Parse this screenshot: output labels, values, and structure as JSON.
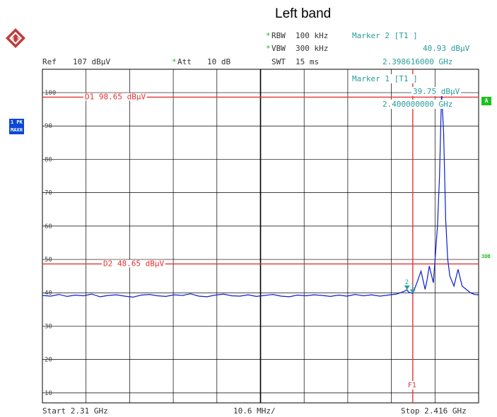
{
  "page_title": "Left band",
  "brand": {
    "logo_letters": "R S",
    "logo_icon": "rohde-schwarz-logo-icon"
  },
  "header": {
    "ref_label": "Ref",
    "ref_value": "107 dBµV",
    "att_label": "Att",
    "att_value": "10 dB",
    "rbw_label": "RBW",
    "rbw_value": "100 kHz",
    "vbw_label": "VBW",
    "vbw_value": "300 kHz",
    "swt_label": "SWT",
    "swt_value": "15 ms",
    "star": "*"
  },
  "markers": [
    {
      "title": "Marker 2 [T1 ]",
      "level": "40.93 dBµV",
      "freq": "2.398616000 GHz"
    },
    {
      "title": "Marker 1 [T1 ]",
      "level": "39.75 dBµV",
      "freq": "2.400000000 GHz"
    }
  ],
  "side_labels": {
    "trace_badge_1": "1 PK",
    "trace_badge_2": "MAXH",
    "annot_a": "A",
    "annot_3db": "3DB"
  },
  "footer": {
    "start": "Start 2.31 GHz",
    "span_div": "10.6 MHz/",
    "stop": "Stop 2.416 GHz"
  },
  "colors": {
    "trace": "#0a1ecc",
    "limit": "#e63333",
    "grid": "#000000",
    "marker_teal": "#2a9c9c"
  },
  "chart_data": {
    "type": "line",
    "title": "Left band",
    "xlabel": "",
    "ylabel": "",
    "xlim": [
      2.31,
      2.416
    ],
    "ylim": [
      7,
      107
    ],
    "yticks": [
      10,
      20,
      30,
      40,
      50,
      60,
      70,
      80,
      90,
      100
    ],
    "ytick_labels": [
      "10",
      "20",
      "30",
      "40",
      "50",
      "60",
      "70",
      "80",
      "90",
      "100"
    ],
    "grid": true,
    "lines": [
      {
        "name": "D1",
        "label": "D1 98.65 dBµV",
        "value": 98.65
      },
      {
        "name": "D2",
        "label": "D2 48.65 dBµV",
        "value": 48.65
      }
    ],
    "vertical_line": {
      "name": "F1",
      "label": "F1",
      "x": 2.4
    },
    "marker_points": [
      {
        "label": "1",
        "x": 2.4,
        "y": 39.75
      },
      {
        "label": "2",
        "x": 2.398616,
        "y": 40.93
      }
    ],
    "series": [
      {
        "x": [
          2.31,
          2.312,
          2.314,
          2.316,
          2.318,
          2.32,
          2.322,
          2.324,
          2.326,
          2.328,
          2.33,
          2.332,
          2.334,
          2.336,
          2.338,
          2.34,
          2.342,
          2.344,
          2.346,
          2.348,
          2.35,
          2.352,
          2.354,
          2.356,
          2.358,
          2.36,
          2.362,
          2.364,
          2.366,
          2.368,
          2.37,
          2.372,
          2.374,
          2.376,
          2.378,
          2.38,
          2.382,
          2.384,
          2.386,
          2.388,
          2.39,
          2.392,
          2.394,
          2.396,
          2.397,
          2.398,
          2.3986,
          2.399,
          2.4,
          2.401,
          2.402,
          2.403,
          2.4035,
          2.404,
          2.405,
          2.406,
          2.4065,
          2.407,
          2.4075,
          2.408,
          2.4085,
          2.409,
          2.41,
          2.411,
          2.412,
          2.413,
          2.414,
          2.415,
          2.416
        ],
        "y": [
          39.2,
          39.0,
          39.5,
          38.9,
          39.3,
          39.1,
          39.6,
          38.8,
          39.2,
          39.4,
          39.0,
          38.7,
          39.3,
          39.5,
          39.1,
          38.9,
          39.4,
          39.2,
          39.7,
          39.0,
          38.8,
          39.3,
          39.6,
          39.1,
          39.0,
          39.4,
          38.9,
          39.2,
          39.5,
          39.0,
          38.8,
          39.3,
          39.1,
          39.4,
          39.2,
          38.9,
          39.3,
          39.0,
          39.5,
          39.1,
          39.4,
          39.0,
          39.3,
          39.6,
          40.0,
          40.5,
          40.9,
          40.2,
          39.8,
          43.0,
          46.5,
          41.0,
          44.0,
          48.0,
          43.0,
          60.0,
          75.0,
          100.0,
          88.0,
          62.0,
          50.0,
          45.0,
          42.0,
          47.0,
          42.0,
          41.0,
          40.0,
          39.5,
          39.4
        ]
      }
    ]
  }
}
